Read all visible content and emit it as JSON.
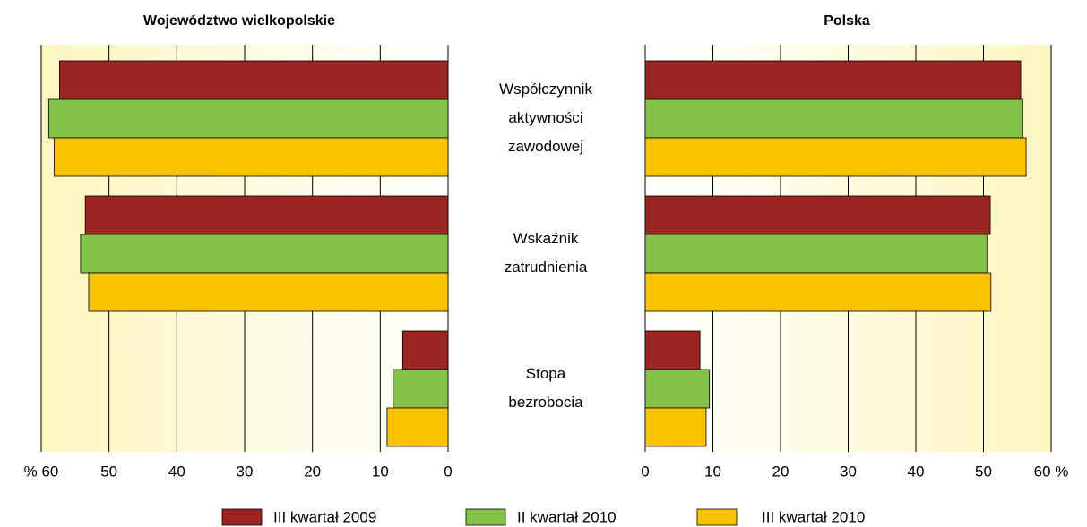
{
  "chart_data": {
    "type": "bar",
    "orientation": "horizontal",
    "categories": [
      [
        "Współczynnik",
        "aktywności",
        "zawodowej"
      ],
      [
        "Wskaźnik",
        "zatrudnienia"
      ],
      [
        "Stopa",
        "bezrobocia"
      ]
    ],
    "series": [
      {
        "name": "III kwartał 2009",
        "color": "#9b2520"
      },
      {
        "name": "II kwartał 2010",
        "color": "#84c24a"
      },
      {
        "name": "III kwartał 2010",
        "color": "#f9c300"
      }
    ],
    "legend": "bottom",
    "grid": true,
    "panels": [
      {
        "title": "Województwo wielkopolskie",
        "reversed": true,
        "values": [
          [
            57.3,
            53.5,
            6.7
          ],
          [
            58.9,
            54.2,
            8.1
          ],
          [
            58.1,
            53.0,
            9.0
          ]
        ],
        "xlim": [
          0,
          60
        ],
        "xticks": [
          {
            "value": 60,
            "label": "% 60"
          },
          50,
          40,
          30,
          20,
          10,
          0
        ]
      },
      {
        "title": "Polska",
        "reversed": false,
        "values": [
          [
            55.5,
            51.0,
            8.1
          ],
          [
            55.8,
            50.5,
            9.5
          ],
          [
            56.3,
            51.1,
            9.0
          ]
        ],
        "xlim": [
          0,
          60
        ],
        "xticks": [
          0,
          10,
          20,
          30,
          40,
          50,
          {
            "value": 60,
            "label": "60 %"
          }
        ]
      }
    ]
  }
}
